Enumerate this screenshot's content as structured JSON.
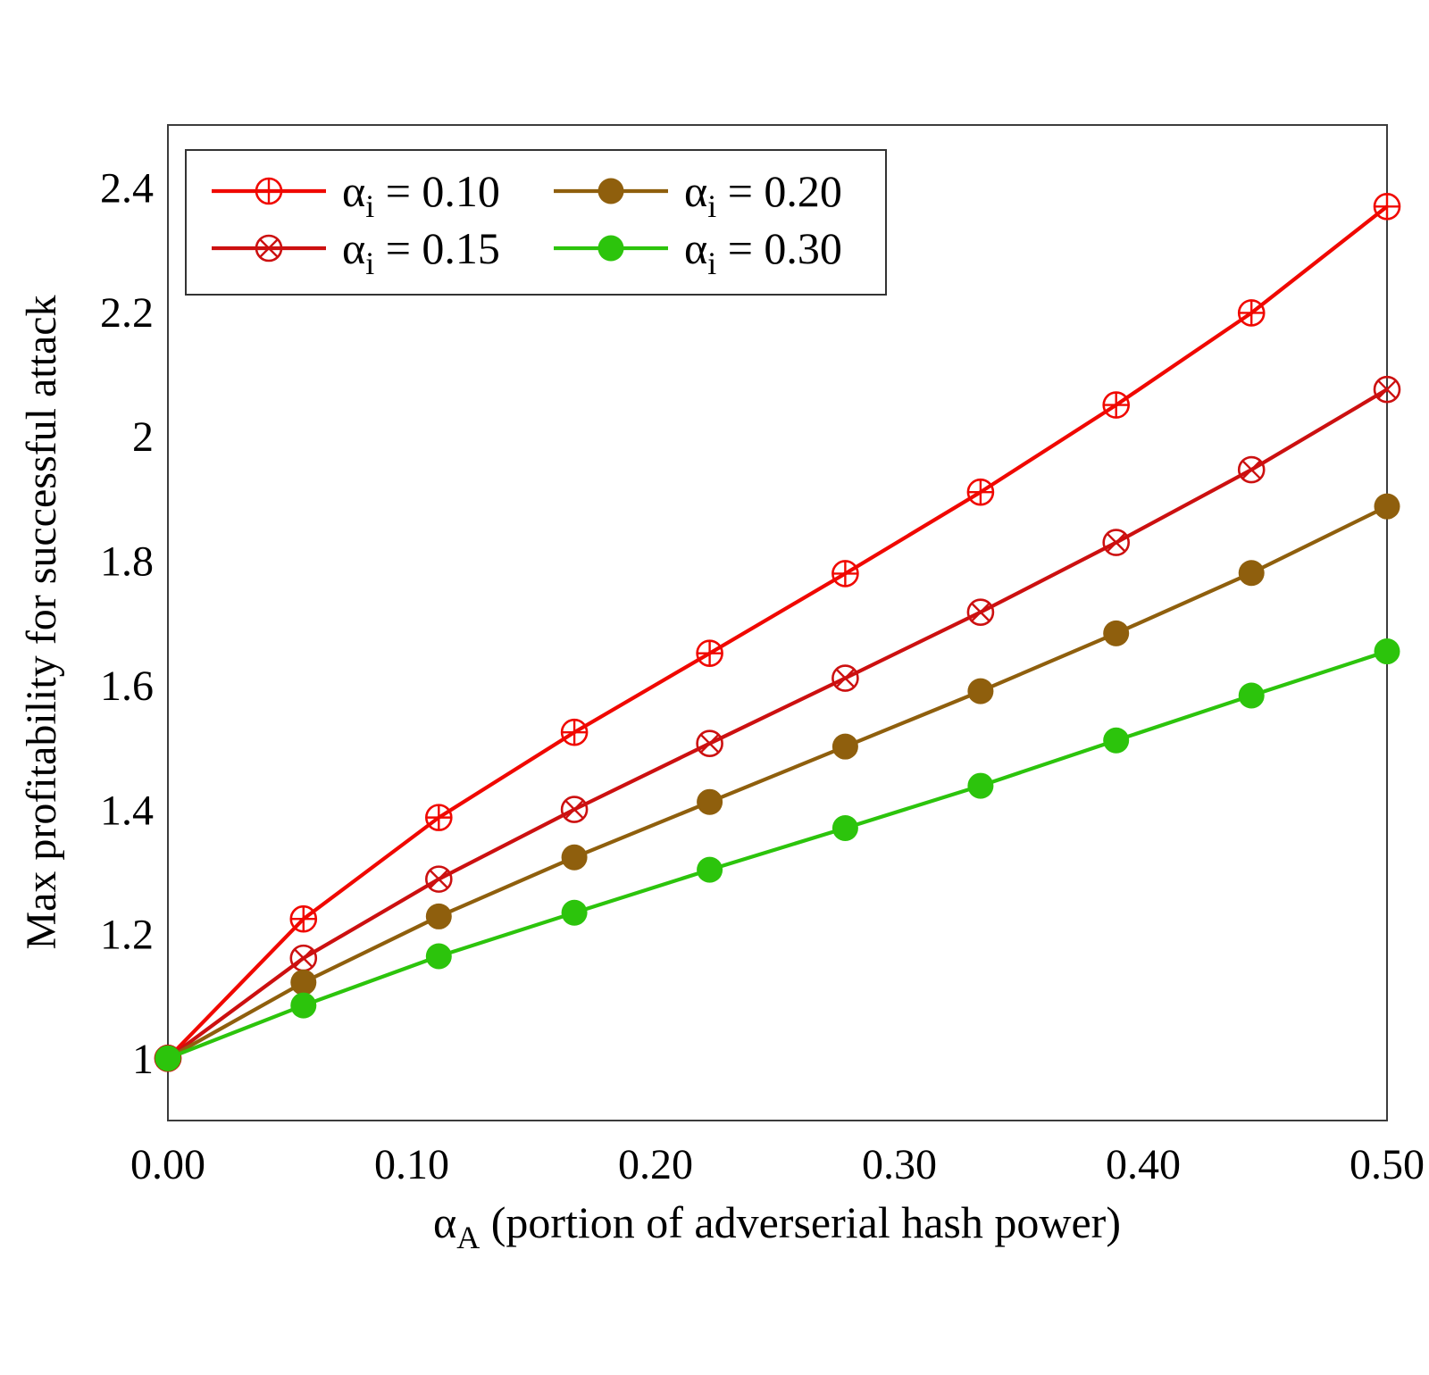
{
  "chart_data": {
    "type": "line",
    "title": "",
    "ylabel": "Max profitability for successful attack",
    "xlabel_parts": {
      "prefix": "α",
      "sub": "A",
      "suffix": "  (portion of adverserial hash power)"
    },
    "xlim": [
      0.0,
      0.5
    ],
    "ylim": [
      0.9,
      2.5
    ],
    "grid": false,
    "legend_position": "top-left-inside",
    "x": [
      0.0,
      0.0556,
      0.1111,
      0.1667,
      0.2222,
      0.2778,
      0.3333,
      0.3889,
      0.4444,
      0.5
    ],
    "xticks": [
      {
        "v": 0.0,
        "label": "0.00"
      },
      {
        "v": 0.1,
        "label": "0.10"
      },
      {
        "v": 0.2,
        "label": "0.20"
      },
      {
        "v": 0.3,
        "label": "0.30"
      },
      {
        "v": 0.4,
        "label": "0.40"
      },
      {
        "v": 0.5,
        "label": "0.50"
      }
    ],
    "yticks": [
      {
        "v": 1.0,
        "label": "1"
      },
      {
        "v": 1.2,
        "label": "1.2"
      },
      {
        "v": 1.4,
        "label": "1.4"
      },
      {
        "v": 1.6,
        "label": "1.6"
      },
      {
        "v": 1.8,
        "label": "1.8"
      },
      {
        "v": 2.0,
        "label": "2"
      },
      {
        "v": 2.2,
        "label": "2.2"
      },
      {
        "v": 2.4,
        "label": "2.4"
      }
    ],
    "series": [
      {
        "id": "alpha-i-0-10",
        "label_parts": {
          "prefix": "α",
          "sub": "i",
          "suffix": " = 0.10"
        },
        "color": "#f00800",
        "marker": "circle-plus",
        "values": [
          1.0,
          1.224,
          1.387,
          1.524,
          1.651,
          1.779,
          1.91,
          2.05,
          2.198,
          2.369
        ]
      },
      {
        "id": "alpha-i-0-15",
        "label_parts": {
          "prefix": "α",
          "sub": "i",
          "suffix": " = 0.15"
        },
        "color": "#cc1010",
        "marker": "circle-cross",
        "values": [
          1.0,
          1.161,
          1.288,
          1.4,
          1.506,
          1.611,
          1.717,
          1.829,
          1.946,
          2.075
        ]
      },
      {
        "id": "alpha-i-0-20",
        "label_parts": {
          "prefix": "α",
          "sub": "i",
          "suffix": " = 0.20"
        },
        "color": "#8f5f0d",
        "marker": "dot",
        "values": [
          1.0,
          1.122,
          1.228,
          1.323,
          1.412,
          1.501,
          1.59,
          1.683,
          1.78,
          1.887
        ]
      },
      {
        "id": "alpha-i-0-30",
        "label_parts": {
          "prefix": "α",
          "sub": "i",
          "suffix": " = 0.30"
        },
        "color": "#2cc40c",
        "marker": "dot",
        "values": [
          1.0,
          1.085,
          1.164,
          1.234,
          1.303,
          1.37,
          1.438,
          1.511,
          1.583,
          1.654
        ]
      }
    ]
  }
}
